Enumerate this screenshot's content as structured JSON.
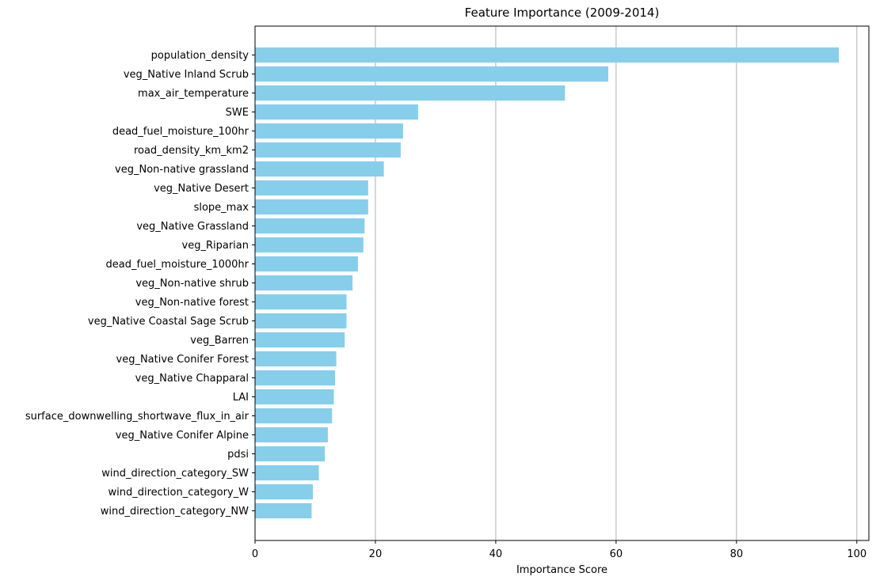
{
  "chart_data": {
    "type": "bar",
    "orientation": "horizontal",
    "title": "Feature Importance (2009-2014)",
    "xlabel": "Importance Score",
    "ylabel": "",
    "xlim": [
      0,
      102
    ],
    "xticks": [
      0,
      20,
      40,
      60,
      80,
      100
    ],
    "xtick_labels": [
      "0",
      "20",
      "40",
      "60",
      "80",
      "100"
    ],
    "grid": "vertical",
    "bar_color": "#87ceeb",
    "grid_color": "#b0b0b0",
    "categories": [
      "population_density",
      "veg_Native Inland Scrub",
      "max_air_temperature",
      "SWE",
      "dead_fuel_moisture_100hr",
      "road_density_km_km2",
      "veg_Non-native grassland",
      "veg_Native Desert",
      "slope_max",
      "veg_Native Grassland",
      "veg_Riparian",
      "dead_fuel_moisture_1000hr",
      "veg_Non-native shrub",
      "veg_Non-native forest",
      "veg_Native Coastal Sage Scrub",
      "veg_Barren",
      "veg_Native Conifer Forest",
      "veg_Native Chapparal",
      "LAI",
      "surface_downwelling_shortwave_flux_in_air",
      "veg_Native Conifer Alpine",
      "pdsi",
      "wind_direction_category_SW",
      "wind_direction_category_W",
      "wind_direction_category_NW"
    ],
    "values": [
      97.0,
      58.7,
      51.5,
      27.1,
      24.6,
      24.2,
      21.4,
      18.8,
      18.8,
      18.2,
      18.0,
      17.1,
      16.2,
      15.2,
      15.2,
      14.9,
      13.5,
      13.3,
      13.1,
      12.8,
      12.1,
      11.6,
      10.6,
      9.6,
      9.4
    ]
  }
}
